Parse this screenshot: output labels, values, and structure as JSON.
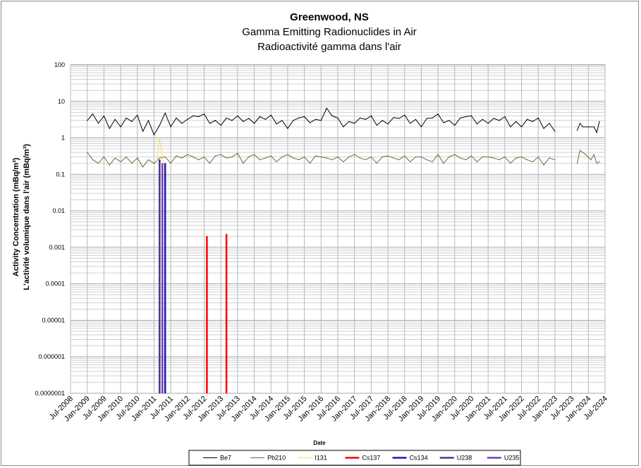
{
  "chart_data": {
    "type": "line",
    "title": "Greenwood, NS",
    "subtitle_en": "Gamma Emitting Radionuclides in Air",
    "subtitle_fr": "Radioactivité gamma dans l'air",
    "ylabel_en": "Activity Concentration  (mBq/m³)",
    "ylabel_fr": "L'activité volumique dans l'air (mBq/m³)",
    "xlabel": "Date",
    "y_scale": "log",
    "ylim": [
      1e-07,
      100
    ],
    "y_ticks": [
      "100",
      "10",
      "1",
      "0.1",
      "0.01",
      "0.001",
      "0.0001",
      "0.00001",
      "0.000001",
      "0.0000001"
    ],
    "xlim": [
      "2008-07",
      "2024-07"
    ],
    "x_ticks": [
      "Jul-2008",
      "Jan-2009",
      "Jul-2009",
      "Jan-2010",
      "Jul-2010",
      "Jan-2011",
      "Jul-2011",
      "Jan-2012",
      "Jul-2012",
      "Jan-2013",
      "Jul-2013",
      "Jan-2014",
      "Jul-2014",
      "Jan-2015",
      "Jul-2015",
      "Jan-2016",
      "Jul-2016",
      "Jan-2017",
      "Jul-2017",
      "Jan-2018",
      "Jul-2018",
      "Jan-2019",
      "Jul-2019",
      "Jan-2020",
      "Jul-2020",
      "Jan-2021",
      "Jul-2021",
      "Jan-2022",
      "Jul-2022",
      "Jan-2023",
      "Jul-2023",
      "Jan-2024",
      "Jul-2024"
    ],
    "grid": true,
    "legend_position": "bottom",
    "series": [
      {
        "name": "Be7",
        "color": "#000000",
        "points": [
          [
            "2009-01",
            3.0
          ],
          [
            "2009-03",
            4.5
          ],
          [
            "2009-05",
            2.5
          ],
          [
            "2009-07",
            4.0
          ],
          [
            "2009-09",
            1.8
          ],
          [
            "2009-11",
            3.2
          ],
          [
            "2010-01",
            2.0
          ],
          [
            "2010-03",
            3.5
          ],
          [
            "2010-05",
            2.8
          ],
          [
            "2010-07",
            4.2
          ],
          [
            "2010-09",
            1.5
          ],
          [
            "2010-11",
            3.0
          ],
          [
            "2011-01",
            1.2
          ],
          [
            "2011-03",
            2.2
          ],
          [
            "2011-05",
            4.8
          ],
          [
            "2011-07",
            2.0
          ],
          [
            "2011-09",
            3.5
          ],
          [
            "2011-11",
            2.5
          ],
          [
            "2012-01",
            3.2
          ],
          [
            "2012-03",
            4.0
          ],
          [
            "2012-05",
            3.8
          ],
          [
            "2012-07",
            4.5
          ],
          [
            "2012-09",
            2.5
          ],
          [
            "2012-11",
            3.0
          ],
          [
            "2013-01",
            2.2
          ],
          [
            "2013-03",
            3.5
          ],
          [
            "2013-05",
            3.0
          ],
          [
            "2013-07",
            4.0
          ],
          [
            "2013-09",
            2.8
          ],
          [
            "2013-11",
            3.4
          ],
          [
            "2014-01",
            2.5
          ],
          [
            "2014-03",
            3.8
          ],
          [
            "2014-05",
            3.2
          ],
          [
            "2014-07",
            4.2
          ],
          [
            "2014-09",
            2.4
          ],
          [
            "2014-11",
            3.0
          ],
          [
            "2015-01",
            1.8
          ],
          [
            "2015-03",
            3.0
          ],
          [
            "2015-05",
            3.5
          ],
          [
            "2015-07",
            3.8
          ],
          [
            "2015-09",
            2.6
          ],
          [
            "2015-11",
            3.2
          ],
          [
            "2016-01",
            3.0
          ],
          [
            "2016-03",
            6.5
          ],
          [
            "2016-05",
            4.0
          ],
          [
            "2016-07",
            3.5
          ],
          [
            "2016-09",
            2.0
          ],
          [
            "2016-11",
            2.8
          ],
          [
            "2017-01",
            2.5
          ],
          [
            "2017-03",
            3.5
          ],
          [
            "2017-05",
            3.2
          ],
          [
            "2017-07",
            4.0
          ],
          [
            "2017-09",
            2.2
          ],
          [
            "2017-11",
            3.0
          ],
          [
            "2018-01",
            2.4
          ],
          [
            "2018-03",
            3.6
          ],
          [
            "2018-05",
            3.4
          ],
          [
            "2018-07",
            4.2
          ],
          [
            "2018-09",
            2.5
          ],
          [
            "2018-11",
            3.2
          ],
          [
            "2019-01",
            2.0
          ],
          [
            "2019-03",
            3.4
          ],
          [
            "2019-05",
            3.5
          ],
          [
            "2019-07",
            4.5
          ],
          [
            "2019-09",
            2.6
          ],
          [
            "2019-11",
            3.0
          ],
          [
            "2020-01",
            2.2
          ],
          [
            "2020-03",
            3.5
          ],
          [
            "2020-05",
            3.8
          ],
          [
            "2020-07",
            4.0
          ],
          [
            "2020-09",
            2.4
          ],
          [
            "2020-11",
            3.2
          ],
          [
            "2021-01",
            2.5
          ],
          [
            "2021-03",
            3.4
          ],
          [
            "2021-05",
            3.0
          ],
          [
            "2021-07",
            3.8
          ],
          [
            "2021-09",
            2.0
          ],
          [
            "2021-11",
            2.8
          ],
          [
            "2022-01",
            2.0
          ],
          [
            "2022-03",
            3.2
          ],
          [
            "2022-05",
            2.8
          ],
          [
            "2022-07",
            3.5
          ],
          [
            "2022-09",
            1.8
          ],
          [
            "2022-11",
            2.5
          ],
          [
            "2023-01",
            1.5
          ],
          null,
          [
            "2023-09",
            1.6
          ],
          [
            "2023-10",
            2.5
          ],
          [
            "2023-11",
            2.0
          ],
          [
            "2024-01",
            2.0
          ],
          [
            "2024-03",
            2.0
          ],
          [
            "2024-04",
            1.4
          ],
          [
            "2024-05",
            2.8
          ]
        ]
      },
      {
        "name": "Pb210",
        "color": "#6b6a3c",
        "points": [
          [
            "2009-01",
            0.4
          ],
          [
            "2009-03",
            0.25
          ],
          [
            "2009-05",
            0.2
          ],
          [
            "2009-07",
            0.3
          ],
          [
            "2009-09",
            0.18
          ],
          [
            "2009-11",
            0.28
          ],
          [
            "2010-01",
            0.22
          ],
          [
            "2010-03",
            0.3
          ],
          [
            "2010-05",
            0.2
          ],
          [
            "2010-07",
            0.28
          ],
          [
            "2010-09",
            0.16
          ],
          [
            "2010-11",
            0.25
          ],
          [
            "2011-01",
            0.2
          ],
          [
            "2011-03",
            0.28
          ],
          [
            "2011-05",
            0.3
          ],
          [
            "2011-07",
            0.2
          ],
          [
            "2011-09",
            0.32
          ],
          [
            "2011-11",
            0.28
          ],
          [
            "2012-01",
            0.35
          ],
          [
            "2012-03",
            0.3
          ],
          [
            "2012-05",
            0.25
          ],
          [
            "2012-07",
            0.3
          ],
          [
            "2012-09",
            0.2
          ],
          [
            "2012-11",
            0.32
          ],
          [
            "2013-01",
            0.35
          ],
          [
            "2013-03",
            0.28
          ],
          [
            "2013-05",
            0.3
          ],
          [
            "2013-07",
            0.38
          ],
          [
            "2013-09",
            0.2
          ],
          [
            "2013-11",
            0.3
          ],
          [
            "2014-01",
            0.35
          ],
          [
            "2014-03",
            0.25
          ],
          [
            "2014-05",
            0.28
          ],
          [
            "2014-07",
            0.32
          ],
          [
            "2014-09",
            0.22
          ],
          [
            "2014-11",
            0.3
          ],
          [
            "2015-01",
            0.35
          ],
          [
            "2015-03",
            0.28
          ],
          [
            "2015-05",
            0.25
          ],
          [
            "2015-07",
            0.3
          ],
          [
            "2015-09",
            0.2
          ],
          [
            "2015-11",
            0.32
          ],
          [
            "2016-01",
            0.3
          ],
          [
            "2016-03",
            0.28
          ],
          [
            "2016-05",
            0.25
          ],
          [
            "2016-07",
            0.3
          ],
          [
            "2016-09",
            0.22
          ],
          [
            "2016-11",
            0.3
          ],
          [
            "2017-01",
            0.35
          ],
          [
            "2017-03",
            0.28
          ],
          [
            "2017-05",
            0.25
          ],
          [
            "2017-07",
            0.3
          ],
          [
            "2017-09",
            0.2
          ],
          [
            "2017-11",
            0.3
          ],
          [
            "2018-01",
            0.32
          ],
          [
            "2018-03",
            0.28
          ],
          [
            "2018-05",
            0.25
          ],
          [
            "2018-07",
            0.32
          ],
          [
            "2018-09",
            0.22
          ],
          [
            "2018-11",
            0.3
          ],
          [
            "2019-01",
            0.3
          ],
          [
            "2019-03",
            0.25
          ],
          [
            "2019-05",
            0.22
          ],
          [
            "2019-07",
            0.35
          ],
          [
            "2019-09",
            0.2
          ],
          [
            "2019-11",
            0.3
          ],
          [
            "2020-01",
            0.35
          ],
          [
            "2020-03",
            0.28
          ],
          [
            "2020-05",
            0.25
          ],
          [
            "2020-07",
            0.32
          ],
          [
            "2020-09",
            0.22
          ],
          [
            "2020-11",
            0.3
          ],
          [
            "2021-01",
            0.3
          ],
          [
            "2021-03",
            0.28
          ],
          [
            "2021-05",
            0.25
          ],
          [
            "2021-07",
            0.3
          ],
          [
            "2021-09",
            0.2
          ],
          [
            "2021-11",
            0.28
          ],
          [
            "2022-01",
            0.3
          ],
          [
            "2022-03",
            0.25
          ],
          [
            "2022-05",
            0.22
          ],
          [
            "2022-07",
            0.3
          ],
          [
            "2022-09",
            0.18
          ],
          [
            "2022-11",
            0.28
          ],
          [
            "2023-01",
            0.25
          ],
          null,
          [
            "2023-09",
            0.2
          ],
          [
            "2023-10",
            0.45
          ],
          [
            "2023-12",
            0.35
          ],
          [
            "2024-02",
            0.25
          ],
          [
            "2024-03",
            0.35
          ],
          [
            "2024-04",
            0.2
          ],
          [
            "2024-05",
            0.22
          ]
        ]
      },
      {
        "name": "I131",
        "color": "#f5dc6a",
        "points": [
          [
            "2011-02",
            0.2
          ],
          [
            "2011-03",
            1.0
          ],
          [
            "2011-04",
            0.3
          ],
          [
            "2011-05",
            0.15
          ]
        ]
      },
      {
        "name": "Cs137",
        "color": "#ff0000",
        "points": [
          [
            "2012-08",
            1e-07
          ],
          [
            "2012-08",
            0.002
          ],
          null,
          [
            "2013-03",
            1e-07
          ],
          [
            "2013-03",
            0.0023
          ]
        ]
      },
      {
        "name": "Cs134",
        "color": "#1a1ab3",
        "points": [
          [
            "2011-03",
            1e-07
          ],
          [
            "2011-03",
            0.25
          ],
          null,
          [
            "2011-05",
            1e-07
          ],
          [
            "2011-05",
            0.2
          ]
        ]
      },
      {
        "name": "U238",
        "color": "#4b3a8c",
        "points": [
          [
            "2011-03",
            1e-07
          ],
          [
            "2011-03",
            0.22
          ]
        ]
      },
      {
        "name": "U235",
        "color": "#7a3ab8",
        "points": [
          [
            "2011-04",
            1e-07
          ],
          [
            "2011-04",
            0.2
          ]
        ]
      }
    ]
  }
}
